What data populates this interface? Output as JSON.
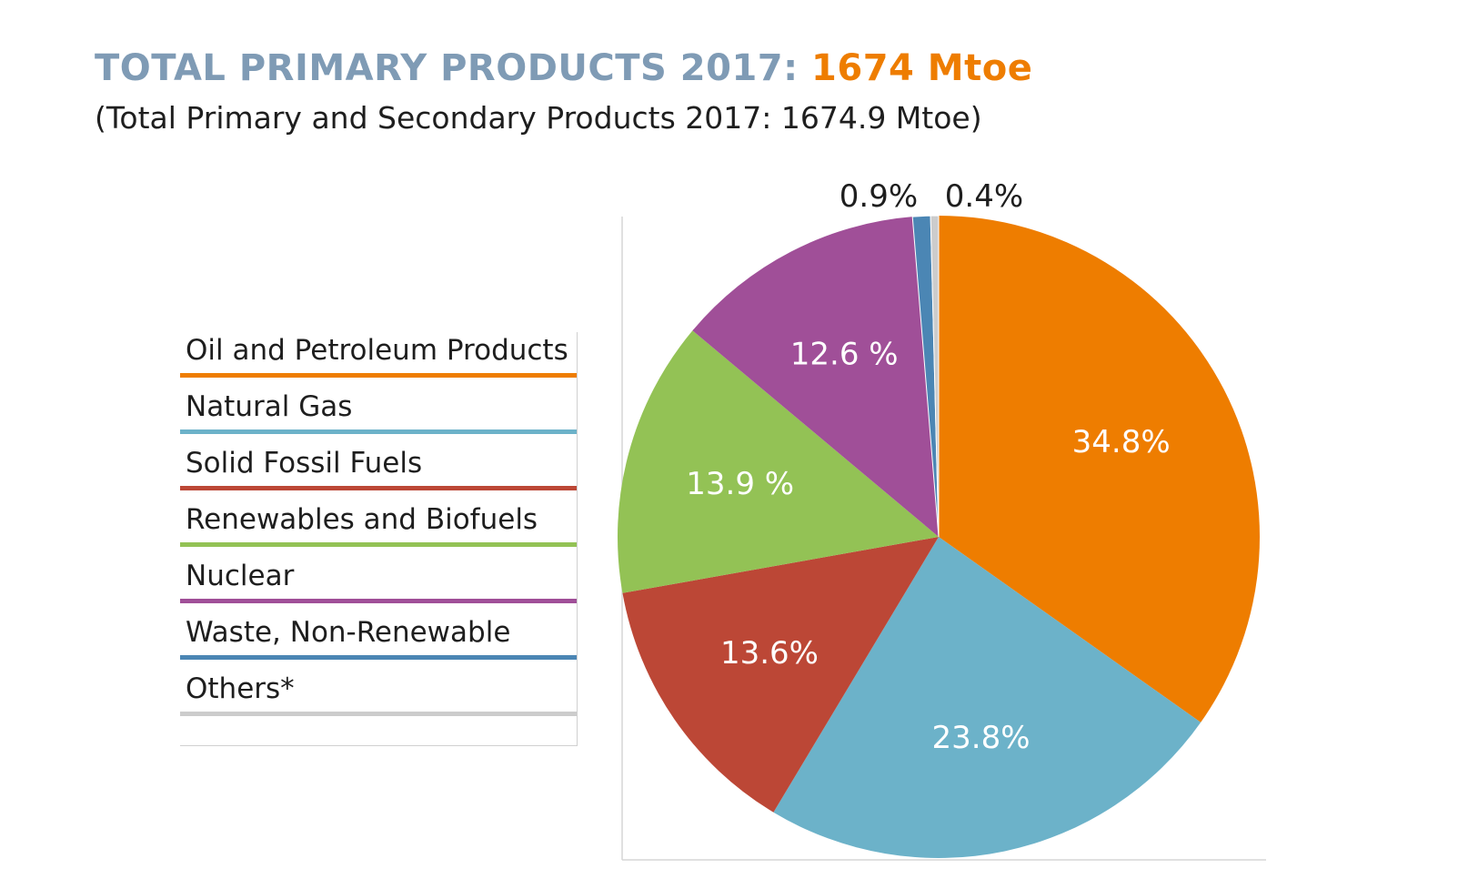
{
  "chart_data": {
    "type": "pie",
    "title_prefix": "TOTAL PRIMARY PRODUCTS 2017:",
    "title_value": "1674 Mtoe",
    "subtitle": "(Total Primary and Secondary Products 2017: 1674.9 Mtoe)",
    "series": [
      {
        "name": "Oil and Petroleum Products",
        "value": 34.8,
        "label": "34.8%",
        "color": "#ee7d00"
      },
      {
        "name": "Natural Gas",
        "value": 23.8,
        "label": "23.8%",
        "color": "#6cb2c9"
      },
      {
        "name": "Solid Fossil Fuels",
        "value": 13.6,
        "label": "13.6%",
        "color": "#bc4736"
      },
      {
        "name": "Renewables and Biofuels",
        "value": 13.9,
        "label": "13.9 %",
        "color": "#93c255"
      },
      {
        "name": "Nuclear",
        "value": 12.6,
        "label": "12.6 %",
        "color": "#a04f98"
      },
      {
        "name": "Waste, Non-Renewable",
        "value": 0.9,
        "label": "0.9%",
        "color": "#4b86b4"
      },
      {
        "name": "Others*",
        "value": 0.4,
        "label": "0.4%",
        "color": "#cccccc"
      }
    ],
    "legend_placement": "left"
  }
}
